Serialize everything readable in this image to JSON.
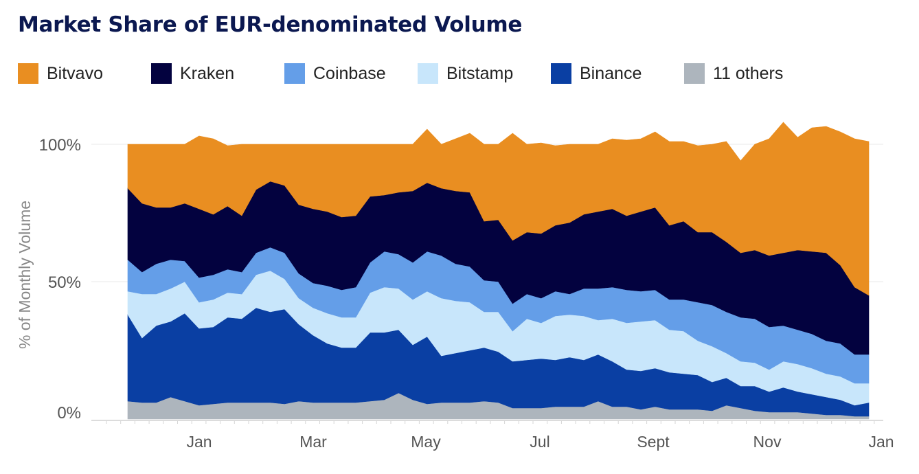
{
  "title": "Market Share of EUR-denominated Volume",
  "chart_data": {
    "type": "area",
    "stacked": true,
    "normalized_percent": true,
    "title": "Market Share of EUR-denominated Volume",
    "ylabel": "% of Monthly Volume",
    "ylim": [
      0,
      100
    ],
    "yticks": [
      "0%",
      "50%",
      "100%"
    ],
    "xticks": [
      "Jan",
      "Mar",
      "May",
      "Jul",
      "Sept",
      "Nov",
      "Jan"
    ],
    "legend_position": "top",
    "x": [
      0,
      1,
      2,
      3,
      4,
      5,
      6,
      7,
      8,
      9,
      10,
      11,
      12,
      13,
      14,
      15,
      16,
      17,
      18,
      19,
      20,
      21,
      22,
      23,
      24,
      25,
      26,
      27,
      28,
      29,
      30,
      31,
      32,
      33,
      34,
      35,
      36,
      37,
      38,
      39,
      40,
      41,
      42,
      43,
      44,
      45,
      46,
      47,
      48,
      49,
      50,
      51,
      52
    ],
    "series": [
      {
        "name": "11 others",
        "color": "#adb5bd",
        "values": [
          6.5,
          6,
          6,
          8,
          6.5,
          5,
          5.5,
          6,
          6,
          6,
          6,
          5.5,
          6.5,
          6,
          6,
          6,
          6,
          6.5,
          7,
          9.5,
          7,
          5.5,
          6,
          6,
          6,
          6.5,
          6,
          4,
          4,
          4,
          4.5,
          4.5,
          4.5,
          6.5,
          4.5,
          4.5,
          3.5,
          4.5,
          3.5,
          3.5,
          3.5,
          3,
          5,
          4,
          3,
          2.5,
          2.5,
          2.5,
          2,
          1.5,
          1.5,
          1,
          1
        ]
      },
      {
        "name": "Binance",
        "color": "#0a3fa3",
        "values": [
          31.5,
          23.5,
          28,
          27.5,
          32,
          28,
          28,
          31,
          30.5,
          34.5,
          33,
          34.5,
          28,
          24.5,
          21.5,
          20,
          20,
          25,
          24.5,
          23,
          20,
          24.5,
          17,
          18,
          19,
          19.5,
          18.5,
          17,
          17.5,
          18,
          17,
          18,
          17,
          17,
          16.5,
          13.5,
          14,
          14,
          13.5,
          13,
          12.5,
          10.5,
          10,
          8,
          9,
          7.5,
          9,
          7.5,
          7,
          6.5,
          5.5,
          4,
          5
        ]
      },
      {
        "name": "Bitstamp",
        "color": "#c8e6fb",
        "values": [
          8.5,
          16,
          11.5,
          12,
          11.5,
          9.5,
          10,
          9,
          9,
          12,
          15,
          11,
          9.5,
          10,
          11,
          11,
          11,
          14.5,
          16.5,
          15,
          16.5,
          16.5,
          21,
          19,
          17.5,
          13,
          14.5,
          11,
          15,
          13,
          16,
          15.5,
          16,
          12.5,
          15.5,
          17,
          18,
          17.5,
          15.5,
          15.5,
          12.5,
          13,
          9,
          9,
          8.5,
          8,
          9.5,
          10,
          9.5,
          8.5,
          8.5,
          8,
          7
        ]
      },
      {
        "name": "Coinbase",
        "color": "#649ee8",
        "values": [
          11.5,
          8,
          11,
          10.5,
          7.5,
          9,
          9,
          8.5,
          8,
          8,
          8.5,
          9.5,
          9,
          9,
          10,
          10,
          11,
          11,
          13,
          12.5,
          13.5,
          14.5,
          15.5,
          13.5,
          13,
          11.5,
          11,
          10,
          9,
          9,
          9,
          7.5,
          10,
          11.5,
          11.5,
          12,
          11,
          11,
          11,
          11.5,
          14,
          15,
          15,
          16,
          16,
          15.5,
          13,
          12.5,
          12.5,
          12,
          12,
          10.5,
          10.5
        ]
      },
      {
        "name": "Kraken",
        "color": "#03023f",
        "values": [
          26,
          25,
          20.5,
          19,
          21,
          25,
          22,
          23,
          20.5,
          23,
          24,
          24.5,
          25,
          27,
          27,
          26.5,
          26,
          24,
          20.5,
          22.5,
          26,
          25,
          24.5,
          26.5,
          27,
          21.5,
          22.5,
          23,
          22.5,
          23.5,
          24,
          26,
          27,
          28,
          28.5,
          27,
          29,
          30,
          27,
          28.5,
          25.5,
          26.5,
          25.5,
          23.5,
          25,
          26,
          26.5,
          29,
          30,
          32,
          28.5,
          24.5,
          21.5
        ]
      },
      {
        "name": "Bitvavo",
        "color": "#e98e21",
        "values": [
          16,
          21.5,
          23,
          23,
          21.5,
          26.5,
          27.5,
          22,
          26,
          16.5,
          13.5,
          15,
          22,
          23.5,
          24.5,
          26.5,
          26,
          19,
          18.5,
          17.5,
          17,
          19.5,
          16,
          19,
          21.5,
          28,
          27.5,
          39,
          32,
          33,
          29,
          28.5,
          25.5,
          24.5,
          25.5,
          27.5,
          26.5,
          27.5,
          30.5,
          29,
          31.5,
          32,
          36.5,
          33.5,
          38.5,
          42.5,
          47.5,
          41,
          45,
          46,
          48.5,
          54,
          56
        ]
      }
    ]
  }
}
